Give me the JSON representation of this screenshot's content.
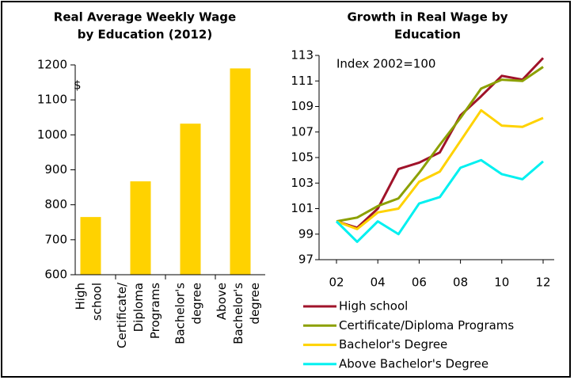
{
  "chart_data": [
    {
      "type": "bar",
      "title": [
        "Real Average Weekly Wage",
        "by Education (2012)"
      ],
      "annotation": "$",
      "categories": [
        [
          "High",
          "school"
        ],
        [
          "Certificate/",
          "Diploma",
          "Programs"
        ],
        [
          "Bachelor's",
          "degree"
        ],
        [
          "Above",
          "Bachelor's",
          "degree"
        ]
      ],
      "values": [
        765,
        867,
        1032,
        1190
      ],
      "color": "#ffd200",
      "ylim": [
        600,
        1200
      ],
      "yticks": [
        600,
        700,
        800,
        900,
        1000,
        1100,
        1200
      ]
    },
    {
      "type": "line",
      "title": [
        "Growth in Real Wage by",
        "Education"
      ],
      "annotation": "Index 2002=100",
      "x": [
        2002,
        2003,
        2004,
        2005,
        2006,
        2007,
        2008,
        2009,
        2010,
        2011,
        2012
      ],
      "xlim": [
        2002,
        2012
      ],
      "xticks": [
        {
          "value": 2002,
          "label": "02"
        },
        {
          "value": 2004,
          "label": "04"
        },
        {
          "value": 2006,
          "label": "06"
        },
        {
          "value": 2008,
          "label": "08"
        },
        {
          "value": 2010,
          "label": "10"
        },
        {
          "value": 2012,
          "label": "12"
        }
      ],
      "ylim": [
        97,
        113
      ],
      "yticks": [
        97,
        99,
        101,
        103,
        105,
        107,
        109,
        111,
        113
      ],
      "series": [
        {
          "name": "High school",
          "color": "#a0132a",
          "values": [
            100,
            99.5,
            101,
            104.1,
            104.6,
            105.4,
            108.3,
            109.8,
            111.4,
            111.1,
            112.8
          ]
        },
        {
          "name": "Certificate/Diploma Programs",
          "color": "#8ca000",
          "values": [
            100,
            100.3,
            101.2,
            101.8,
            103.8,
            106,
            108.1,
            110.4,
            111.1,
            111,
            112.1
          ]
        },
        {
          "name": "Bachelor's Degree",
          "color": "#ffd200",
          "values": [
            100,
            99.4,
            100.7,
            101,
            103.1,
            103.9,
            106.3,
            108.7,
            107.5,
            107.4,
            108.1
          ]
        },
        {
          "name": "Above Bachelor's Degree",
          "color": "#00f0f0",
          "values": [
            100,
            98.4,
            100,
            99,
            101.4,
            101.9,
            104.2,
            104.8,
            103.7,
            103.3,
            104.7
          ]
        }
      ]
    }
  ]
}
